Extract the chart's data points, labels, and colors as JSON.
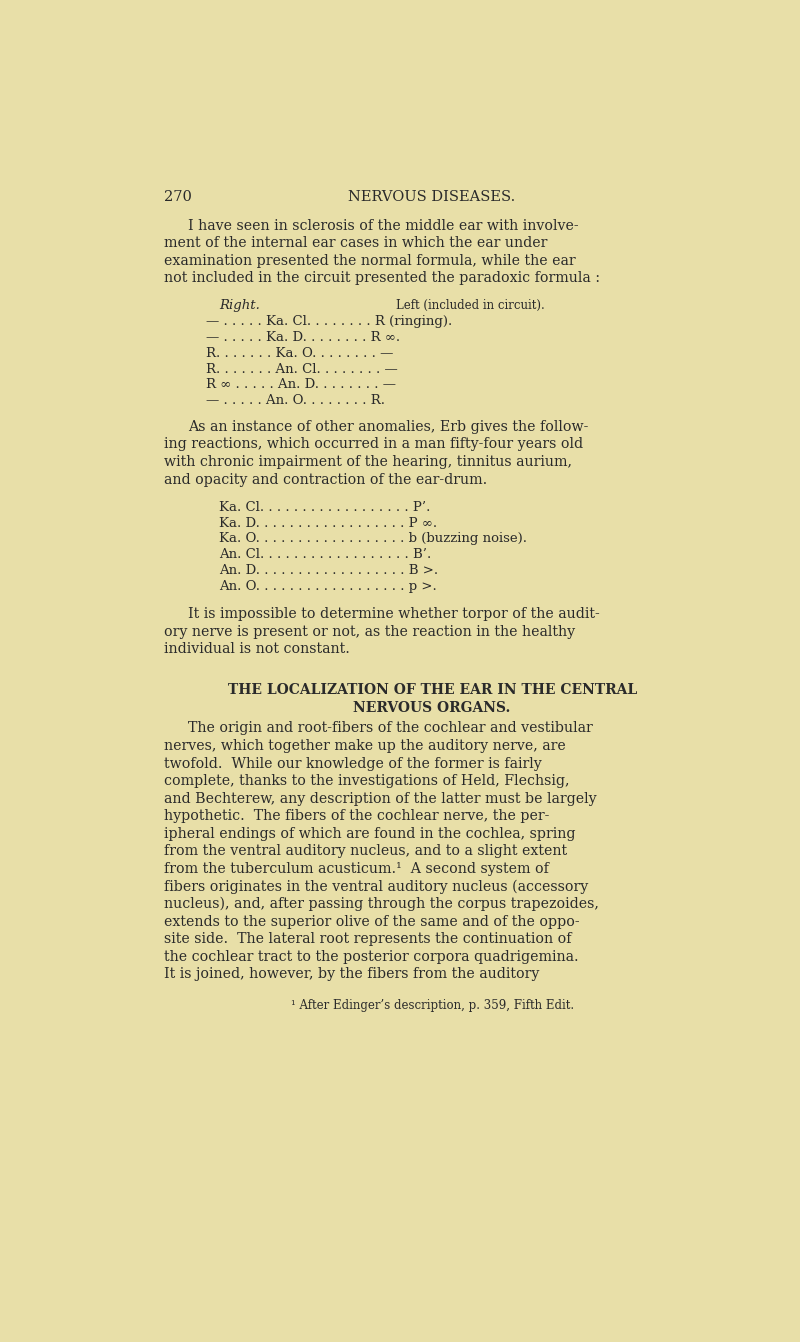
{
  "background_color": "#e8dfa8",
  "text_color": "#2a2a2a",
  "page_number": "270",
  "header": "NERVOUS DISEASES.",
  "para1": "I have seen in sclerosis of the middle ear with involve-\nment of the internal ear cases in which the ear under\nexamination presented the normal formula, while the ear\nnot included in the circuit presented the paradoxic formula :",
  "table1_header_left": "Right.",
  "table1_header_right": "Left (included in circuit).",
  "table1_rows": [
    "— . . . . . Ka. Cl. . . . . . . . R (ringing).",
    "— . . . . . Ka. D. . . . . . . . R ∞.",
    "R. . . . . . . Ka. O. . . . . . . . —",
    "R. . . . . . . An. Cl. . . . . . . . —",
    "R ∞ . . . . . An. D. . . . . . . . —",
    "— . . . . . An. O. . . . . . . . R."
  ],
  "para2": "As an instance of other anomalies, Erb gives the follow-\ning reactions, which occurred in a man fifty-four years old\nwith chronic impairment of the hearing, tinnitus aurium,\nand opacity and contraction of the ear-drum.",
  "table2_rows": [
    "Ka. Cl. . . . . . . . . . . . . . . . . . P’.",
    "Ka. D. . . . . . . . . . . . . . . . . . P ∞.",
    "Ka. O. . . . . . . . . . . . . . . . . . b (buzzing noise).",
    "An. Cl. . . . . . . . . . . . . . . . . . B’.",
    "An. D. . . . . . . . . . . . . . . . . . B >.",
    "An. O. . . . . . . . . . . . . . . . . . p >."
  ],
  "para3": "It is impossible to determine whether torpor of the audit-\nory nerve is present or not, as the reaction in the healthy\nindividual is not constant.",
  "section_title1": "THE LOCALIZATION OF THE EAR IN THE CENTRAL",
  "section_title2": "NERVOUS ORGANS.",
  "para4": "The origin and root-fibers of the cochlear and vestibular\nnerves, which together make up the auditory nerve, are\ntwofold.  While our knowledge of the former is fairly\ncomplete, thanks to the investigations of Held, Flechsig,\nand Bechterew, any description of the latter must be largely\nhypothetic.  The fibers of the cochlear nerve, the per-\nipheral endings of which are found in the cochlea, spring\nfrom the ventral auditory nucleus, and to a slight extent\nfrom the tuberculum acusticum.¹  A second system of\nfibers originates in the ventral auditory nucleus (accessory\nnucleus), and, after passing through the corpus trapezoides,\nextends to the superior olive of the same and of the oppo-\nsite side.  The lateral root represents the continuation of\nthe cochlear tract to the posterior corpora quadrigemina.\nIt is joined, however, by the fibers from the auditory",
  "footnote": "¹ After Edinger’s description, p. 359, Fifth Edit."
}
